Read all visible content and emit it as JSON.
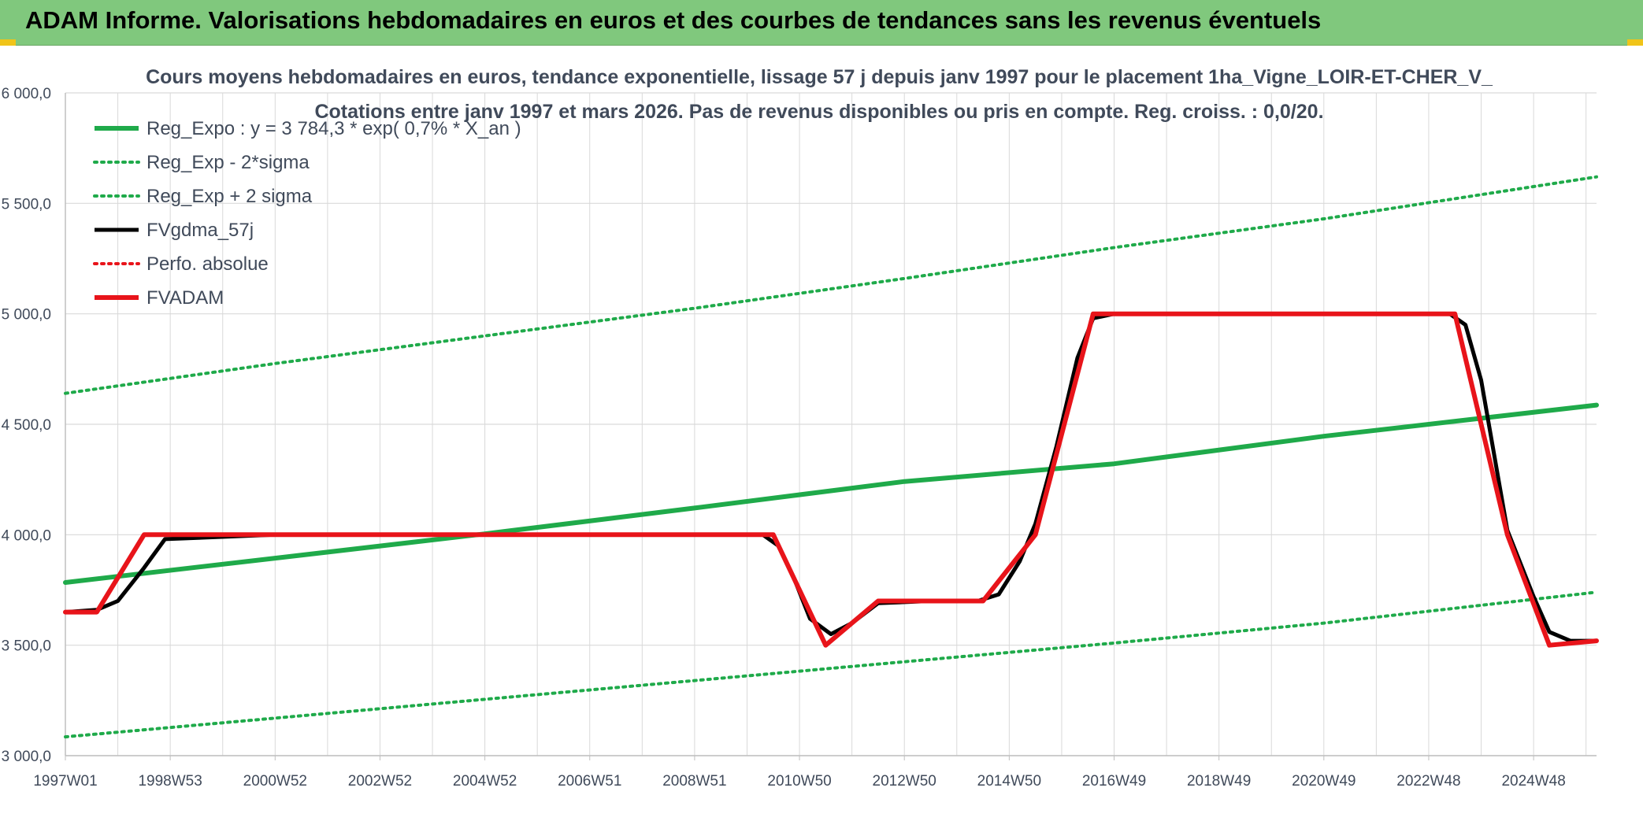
{
  "header": {
    "title": "ADAM Informe. Valorisations hebdomadaires en euros et des courbes de tendances sans les revenus éventuels"
  },
  "colors": {
    "banner": "#80c87d",
    "green": "#1faa4a",
    "red": "#e8141a",
    "black": "#000000",
    "grid": "#d9d9d9",
    "text": "#404a5a"
  },
  "chart_data": {
    "type": "line",
    "title": "Cours moyens hebdomadaires en euros, tendance exponentielle, lissage 57 j depuis janv 1997 pour le placement 1ha_Vigne_LOIR-ET-CHER_V_",
    "subtitle": "Cotations entre janv 1997 et mars 2026. Pas de revenus disponibles ou pris en compte. Reg. croiss. : 0,0/20.",
    "xlabel": "",
    "ylabel": "",
    "x_range": [
      1997.0,
      2026.2
    ],
    "ylim": [
      3000,
      6000
    ],
    "yticks": [
      {
        "value": 3000,
        "label": "3 000,0"
      },
      {
        "value": 3500,
        "label": "3 500,0"
      },
      {
        "value": 4000,
        "label": "4 000,0"
      },
      {
        "value": 4500,
        "label": "4 500,0"
      },
      {
        "value": 5000,
        "label": "5 000,0"
      },
      {
        "value": 5500,
        "label": "5 500,0"
      },
      {
        "value": 6000,
        "label": "6 000,0"
      }
    ],
    "xticks": [
      {
        "value": 1997.0,
        "label": "1997W01"
      },
      {
        "value": 1999.0,
        "label": "1998W53"
      },
      {
        "value": 2001.0,
        "label": "2000W52"
      },
      {
        "value": 2003.0,
        "label": "2002W52"
      },
      {
        "value": 2005.0,
        "label": "2004W52"
      },
      {
        "value": 2007.0,
        "label": "2006W51"
      },
      {
        "value": 2009.0,
        "label": "2008W51"
      },
      {
        "value": 2011.0,
        "label": "2010W50"
      },
      {
        "value": 2013.0,
        "label": "2012W50"
      },
      {
        "value": 2015.0,
        "label": "2014W50"
      },
      {
        "value": 2017.0,
        "label": "2016W49"
      },
      {
        "value": 2019.0,
        "label": "2018W49"
      },
      {
        "value": 2021.0,
        "label": "2020W49"
      },
      {
        "value": 2023.0,
        "label": "2022W48"
      },
      {
        "value": 2025.0,
        "label": "2024W48"
      }
    ],
    "grid": true,
    "legend_position": "top-left",
    "series": [
      {
        "name": "Reg_Expo : y = 3 784,3 * exp( 0,7% *  X_an )",
        "style": "solid-thick",
        "color": "#1faa4a",
        "x": [
          1997.0,
          2001.0,
          2005.0,
          2009.0,
          2013.0,
          2017.0,
          2021.0,
          2026.2
        ],
        "y": [
          3784,
          3894,
          4004,
          4121,
          4241,
          4321,
          4446,
          4587
        ]
      },
      {
        "name": "Reg_Exp - 2*sigma",
        "style": "dotted",
        "color": "#1faa4a",
        "x": [
          1997.0,
          2001.0,
          2005.0,
          2009.0,
          2013.0,
          2017.0,
          2021.0,
          2026.2
        ],
        "y": [
          3085,
          3170,
          3255,
          3340,
          3425,
          3510,
          3600,
          3740
        ]
      },
      {
        "name": "Reg_Exp + 2 sigma",
        "style": "dotted",
        "color": "#1faa4a",
        "x": [
          1997.0,
          2001.0,
          2005.0,
          2009.0,
          2013.0,
          2017.0,
          2021.0,
          2026.2
        ],
        "y": [
          4640,
          4775,
          4900,
          5025,
          5160,
          5300,
          5430,
          5620
        ]
      },
      {
        "name": "FVgdma_57j",
        "style": "solid",
        "color": "#000000",
        "x": [
          1997.0,
          1997.6,
          1998.0,
          1998.5,
          1998.9,
          2001.0,
          2005.0,
          2008.0,
          2010.3,
          2010.6,
          2010.9,
          2011.2,
          2011.6,
          2012.0,
          2012.5,
          2013.5,
          2014.4,
          2014.8,
          2015.2,
          2015.5,
          2015.9,
          2016.3,
          2016.6,
          2017.0,
          2020.0,
          2022.5,
          2023.4,
          2023.7,
          2024.0,
          2024.5,
          2025.0,
          2025.3,
          2025.7,
          2026.2
        ],
        "y": [
          3650,
          3660,
          3700,
          3850,
          3980,
          4000,
          4000,
          4000,
          4000,
          3950,
          3800,
          3620,
          3550,
          3600,
          3690,
          3700,
          3700,
          3730,
          3880,
          4050,
          4400,
          4800,
          4980,
          5000,
          5000,
          5000,
          5000,
          4950,
          4700,
          4020,
          3720,
          3560,
          3520,
          3520
        ]
      },
      {
        "name": "Perfo. absolue",
        "style": "dotted",
        "color": "#e8141a",
        "x": [],
        "y": []
      },
      {
        "name": "FVADAM",
        "style": "solid-thick",
        "color": "#e8141a",
        "x": [
          1997.0,
          1997.6,
          1998.5,
          1998.9,
          2001.0,
          2005.0,
          2008.0,
          2010.5,
          2011.5,
          2012.5,
          2013.5,
          2014.5,
          2015.5,
          2016.6,
          2020.0,
          2023.5,
          2024.5,
          2025.3,
          2026.2
        ],
        "y": [
          3650,
          3650,
          4000,
          4000,
          4000,
          4000,
          4000,
          4000,
          3500,
          3700,
          3700,
          3700,
          4000,
          5000,
          5000,
          5000,
          4000,
          3500,
          3520
        ]
      }
    ]
  }
}
